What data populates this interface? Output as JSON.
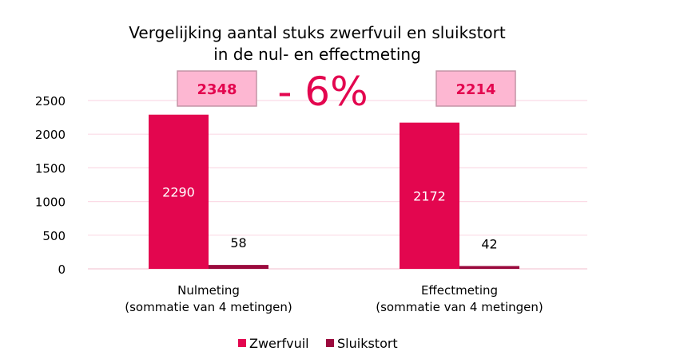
{
  "chart_data": {
    "type": "bar",
    "title": [
      "Vergelijking aantal stuks zwerfvuil en sluikstort",
      "in de nul- en effectmeting"
    ],
    "categories": [
      [
        "Nulmeting",
        "(sommatie van 4 metingen)"
      ],
      [
        "Effectmeting",
        "(sommatie van 4 metingen)"
      ]
    ],
    "series": [
      {
        "name": "Zwerfvuil",
        "values": [
          2290,
          2172
        ],
        "color": "#E3064F"
      },
      {
        "name": "Sluikstort",
        "values": [
          58,
          42
        ],
        "color": "#9B0A3D"
      }
    ],
    "ylim": [
      0,
      2500
    ],
    "yticks": [
      0,
      500,
      1000,
      1500,
      2000,
      2500
    ],
    "grid": true,
    "legend": "bottom",
    "annotations": {
      "totals": [
        "2348",
        "2214"
      ],
      "change": "- 6%",
      "total_box_fill": "#FDB7D2",
      "accent": "#E3064F"
    }
  }
}
